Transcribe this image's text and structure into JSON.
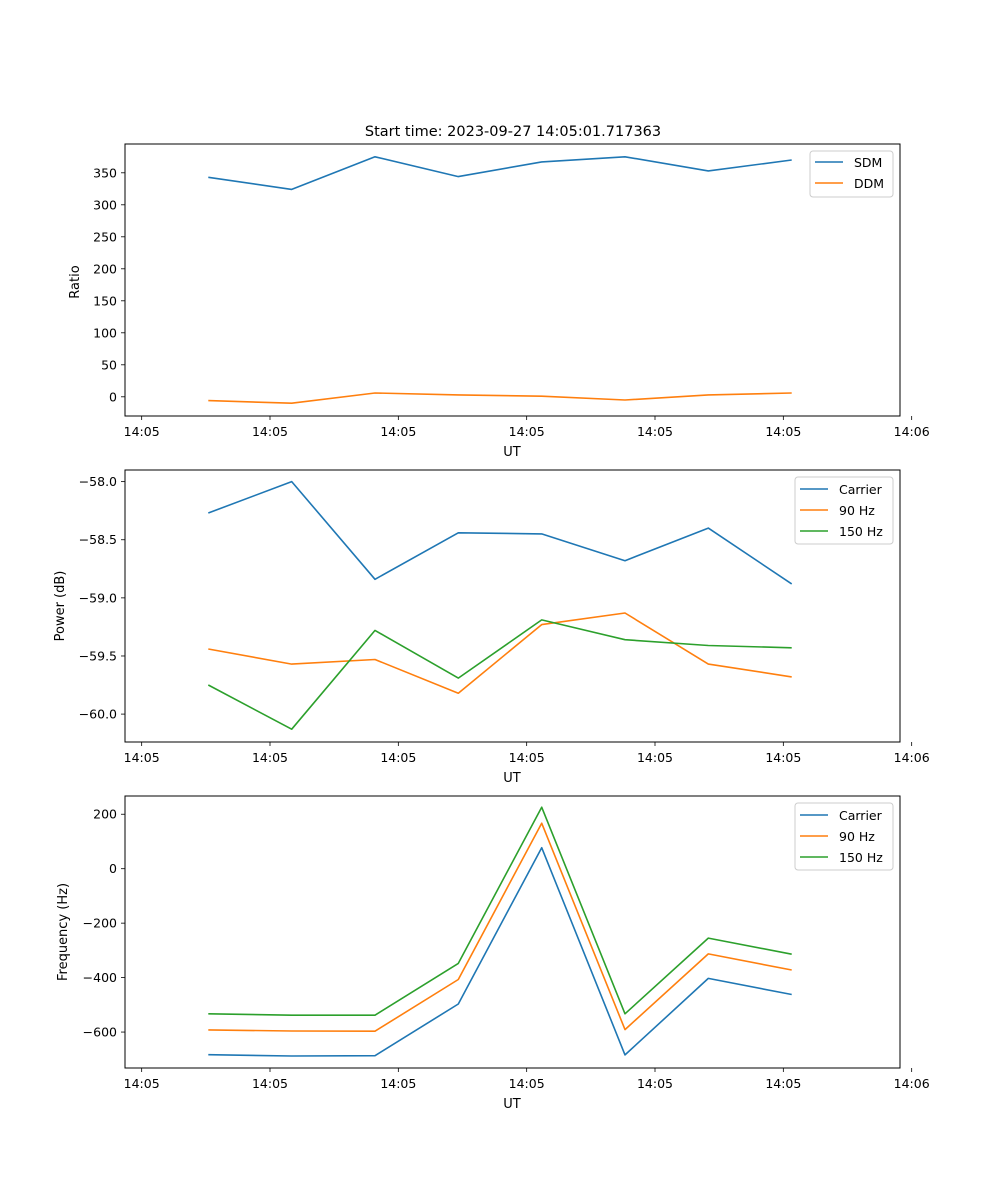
{
  "chart_data": [
    {
      "type": "line",
      "title": "Start time: 2023-09-27 14:05:01.717363",
      "xlabel": "UT",
      "ylabel": "Ratio",
      "xlim": [
        0,
        9.3
      ],
      "ylim": [
        -30,
        395
      ],
      "x_ticks": [
        0.2,
        1.74,
        3.28,
        4.82,
        6.36,
        7.9,
        9.44
      ],
      "x_tick_labels": [
        "14:05",
        "14:05",
        "14:05",
        "14:05",
        "14:05",
        "14:05",
        "14:06"
      ],
      "y_ticks": [
        0,
        50,
        100,
        150,
        200,
        250,
        300,
        350
      ],
      "y_tick_labels": [
        "0",
        "50",
        "100",
        "150",
        "200",
        "250",
        "300",
        "350"
      ],
      "x": [
        1,
        2,
        3,
        4,
        5,
        6,
        7,
        8
      ],
      "series": [
        {
          "name": "SDM",
          "color": "#1f77b4",
          "values": [
            343,
            324,
            375,
            344,
            367,
            375,
            353,
            370
          ]
        },
        {
          "name": "DDM",
          "color": "#ff7f0e",
          "values": [
            -6,
            -10,
            6,
            3,
            1,
            -5,
            3,
            6
          ]
        }
      ],
      "legend": "top-right"
    },
    {
      "type": "line",
      "title": "",
      "xlabel": "UT",
      "ylabel": "Power (dB)",
      "xlim": [
        0,
        9.3
      ],
      "ylim": [
        -60.24,
        -57.9
      ],
      "x_ticks": [
        0.2,
        1.74,
        3.28,
        4.82,
        6.36,
        7.9,
        9.44
      ],
      "x_tick_labels": [
        "14:05",
        "14:05",
        "14:05",
        "14:05",
        "14:05",
        "14:05",
        "14:06"
      ],
      "y_ticks": [
        -60.0,
        -59.5,
        -59.0,
        -58.5,
        -58.0
      ],
      "y_tick_labels": [
        "−60.0",
        "−59.5",
        "−59.0",
        "−58.5",
        "−58.0"
      ],
      "x": [
        1,
        2,
        3,
        4,
        5,
        6,
        7,
        8
      ],
      "series": [
        {
          "name": "Carrier",
          "color": "#1f77b4",
          "values": [
            -58.27,
            -58.0,
            -58.84,
            -58.44,
            -58.45,
            -58.68,
            -58.4,
            -58.88
          ]
        },
        {
          "name": "90 Hz",
          "color": "#ff7f0e",
          "values": [
            -59.44,
            -59.57,
            -59.53,
            -59.82,
            -59.23,
            -59.13,
            -59.57,
            -59.68
          ]
        },
        {
          "name": "150 Hz",
          "color": "#2ca02c",
          "values": [
            -59.75,
            -60.13,
            -59.28,
            -59.69,
            -59.19,
            -59.36,
            -59.41,
            -59.43
          ]
        }
      ],
      "legend": "top-right"
    },
    {
      "type": "line",
      "title": "",
      "xlabel": "UT",
      "ylabel": "Frequency (Hz)",
      "xlim": [
        0,
        9.3
      ],
      "ylim": [
        -732,
        267
      ],
      "x_ticks": [
        0.2,
        1.74,
        3.28,
        4.82,
        6.36,
        7.9,
        9.44
      ],
      "x_tick_labels": [
        "14:05",
        "14:05",
        "14:05",
        "14:05",
        "14:05",
        "14:05",
        "14:06"
      ],
      "y_ticks": [
        -600,
        -400,
        -200,
        0,
        200
      ],
      "y_tick_labels": [
        "−600",
        "−400",
        "−200",
        "0",
        "200"
      ],
      "x": [
        1,
        2,
        3,
        4,
        5,
        6,
        7,
        8
      ],
      "series": [
        {
          "name": "Carrier",
          "color": "#1f77b4",
          "values": [
            -683,
            -688,
            -687,
            -497,
            77,
            -684,
            -403,
            -462
          ]
        },
        {
          "name": "90 Hz",
          "color": "#ff7f0e",
          "values": [
            -592,
            -596,
            -597,
            -407,
            167,
            -591,
            -313,
            -372
          ]
        },
        {
          "name": "150 Hz",
          "color": "#2ca02c",
          "values": [
            -533,
            -538,
            -538,
            -348,
            226,
            -533,
            -255,
            -314
          ]
        }
      ],
      "legend": "top-right"
    }
  ]
}
